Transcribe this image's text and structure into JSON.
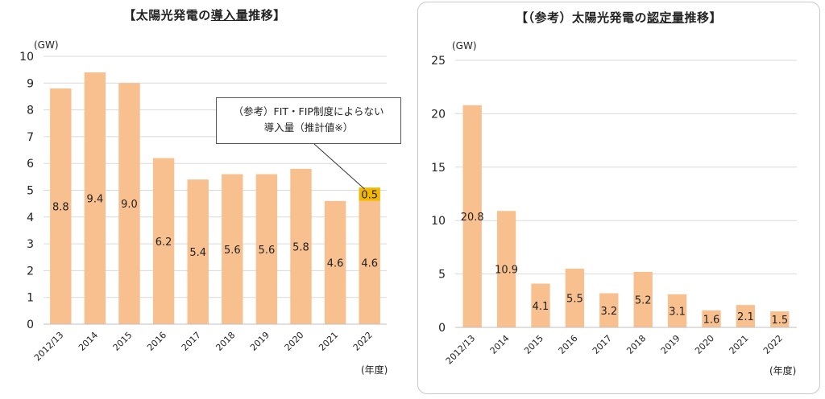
{
  "left": {
    "title_prefix": "【太陽光発電の",
    "title_underline": "導入量",
    "title_suffix": "推移】",
    "y_unit": "(GW)",
    "x_unit": "(年度)",
    "callout_line1": "（参考）FIT・FIP制度によらない",
    "callout_line2": "導入量（推計値※）"
  },
  "right": {
    "title_prefix": "【（参考）太陽光発電の",
    "title_underline": "認定量",
    "title_suffix": "推移】",
    "y_unit": "(GW)",
    "x_unit": "(年度)"
  },
  "colors": {
    "bar": "#f9c08f",
    "highlight": "#f2b705",
    "grid": "#d9d9d9"
  },
  "chart_data": [
    {
      "type": "bar",
      "title": "【太陽光発電の導入量推移】",
      "ylabel": "(GW)",
      "xlabel": "(年度)",
      "ylim": [
        0,
        10
      ],
      "yticks": [
        0,
        1,
        2,
        3,
        4,
        5,
        6,
        7,
        8,
        9,
        10
      ],
      "grid": true,
      "categories": [
        "2012/13",
        "2014",
        "2015",
        "2016",
        "2017",
        "2018",
        "2019",
        "2020",
        "2021",
        "2022"
      ],
      "series": [
        {
          "values": [
            8.8,
            9.4,
            9.0,
            6.2,
            5.4,
            5.6,
            5.6,
            5.8,
            4.6,
            4.6
          ]
        },
        {
          "name": "（参考）FIT・FIP制度によらない導入量（推計値※）",
          "values": [
            null,
            null,
            null,
            null,
            null,
            null,
            null,
            null,
            null,
            0.5
          ]
        }
      ],
      "stacked": true,
      "annotations": [
        "（参考）FIT・FIP制度によらない導入量（推計値※）"
      ]
    },
    {
      "type": "bar",
      "title": "【（参考）太陽光発電の認定量推移】",
      "ylabel": "(GW)",
      "xlabel": "(年度)",
      "ylim": [
        0,
        25
      ],
      "yticks": [
        0,
        5,
        10,
        15,
        20,
        25
      ],
      "grid": true,
      "categories": [
        "2012/13",
        "2014",
        "2015",
        "2016",
        "2017",
        "2018",
        "2019",
        "2020",
        "2021",
        "2022"
      ],
      "series": [
        {
          "values": [
            20.8,
            10.9,
            4.1,
            5.5,
            3.2,
            5.2,
            3.1,
            1.6,
            2.1,
            1.5
          ]
        }
      ]
    }
  ]
}
